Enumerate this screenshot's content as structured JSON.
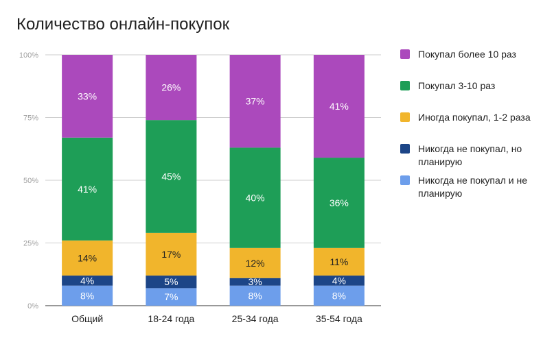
{
  "chart_data": {
    "type": "bar",
    "stacked": true,
    "percent": true,
    "title": "Количество онлайн-покупок",
    "categories": [
      "Общий",
      "18-24 года",
      "25-34 года",
      "35-54 года"
    ],
    "y_ticks": [
      "0%",
      "25%",
      "50%",
      "75%",
      "100%"
    ],
    "ylim": [
      0,
      100
    ],
    "grid": true,
    "legend_position": "right",
    "series": [
      {
        "name": "Никогда не покупал и не планирую",
        "color": "#6d9eeb",
        "values": [
          8,
          7,
          8,
          8
        ],
        "labels": [
          "8%",
          "7%",
          "8%",
          "8%"
        ]
      },
      {
        "name": "Никогда не покупал, но планирую",
        "color": "#1c4587",
        "values": [
          4,
          5,
          3,
          4
        ],
        "labels": [
          "4%",
          "5%",
          "3%",
          "4%"
        ]
      },
      {
        "name": "Иногда покупал, 1-2 раза",
        "color": "#f1b52c",
        "values": [
          14,
          17,
          12,
          11
        ],
        "labels": [
          "14%",
          "17%",
          "12%",
          "11%"
        ]
      },
      {
        "name": "Покупал 3-10 раз",
        "color": "#1e9e57",
        "values": [
          41,
          45,
          40,
          36
        ],
        "labels": [
          "41%",
          "45%",
          "40%",
          "36%"
        ]
      },
      {
        "name": "Покупал более 10 раз",
        "color": "#ab49bc",
        "values": [
          33,
          26,
          37,
          41
        ],
        "labels": [
          "33%",
          "26%",
          "37%",
          "41%"
        ]
      }
    ],
    "legend_order": [
      {
        "name": "Покупал более 10 раз",
        "color": "#ab49bc"
      },
      {
        "name": "Покупал 3-10 раз",
        "color": "#1e9e57"
      },
      {
        "name": "Иногда покупал, 1-2 раза",
        "color": "#f1b52c"
      },
      {
        "name": "Никогда не покупал, но планирую",
        "color": "#1c4587"
      },
      {
        "name": "Никогда не покупал и не планирую",
        "color": "#6d9eeb"
      }
    ]
  }
}
